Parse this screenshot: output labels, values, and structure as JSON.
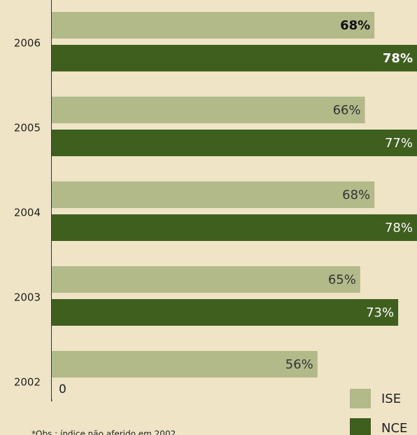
{
  "chart_data": {
    "type": "bar",
    "orientation": "horizontal",
    "categories": [
      "2006",
      "2005",
      "2004",
      "2003",
      "2002"
    ],
    "series": [
      {
        "name": "ISE",
        "color": "#b2ba8a",
        "values": [
          68,
          66,
          68,
          65,
          56
        ],
        "value_labels": [
          "68%",
          "66%",
          "68%",
          "65%",
          "56%"
        ]
      },
      {
        "name": "NCE",
        "color": "#3f5f1e",
        "values": [
          78,
          77,
          78,
          73,
          null
        ],
        "value_labels": [
          "78%",
          "77%",
          "78%",
          "73%",
          null
        ]
      }
    ],
    "xlim": [
      0,
      78
    ],
    "xticks": [
      0
    ],
    "footnote": "*Obs.: índice não aferido em 2002"
  }
}
